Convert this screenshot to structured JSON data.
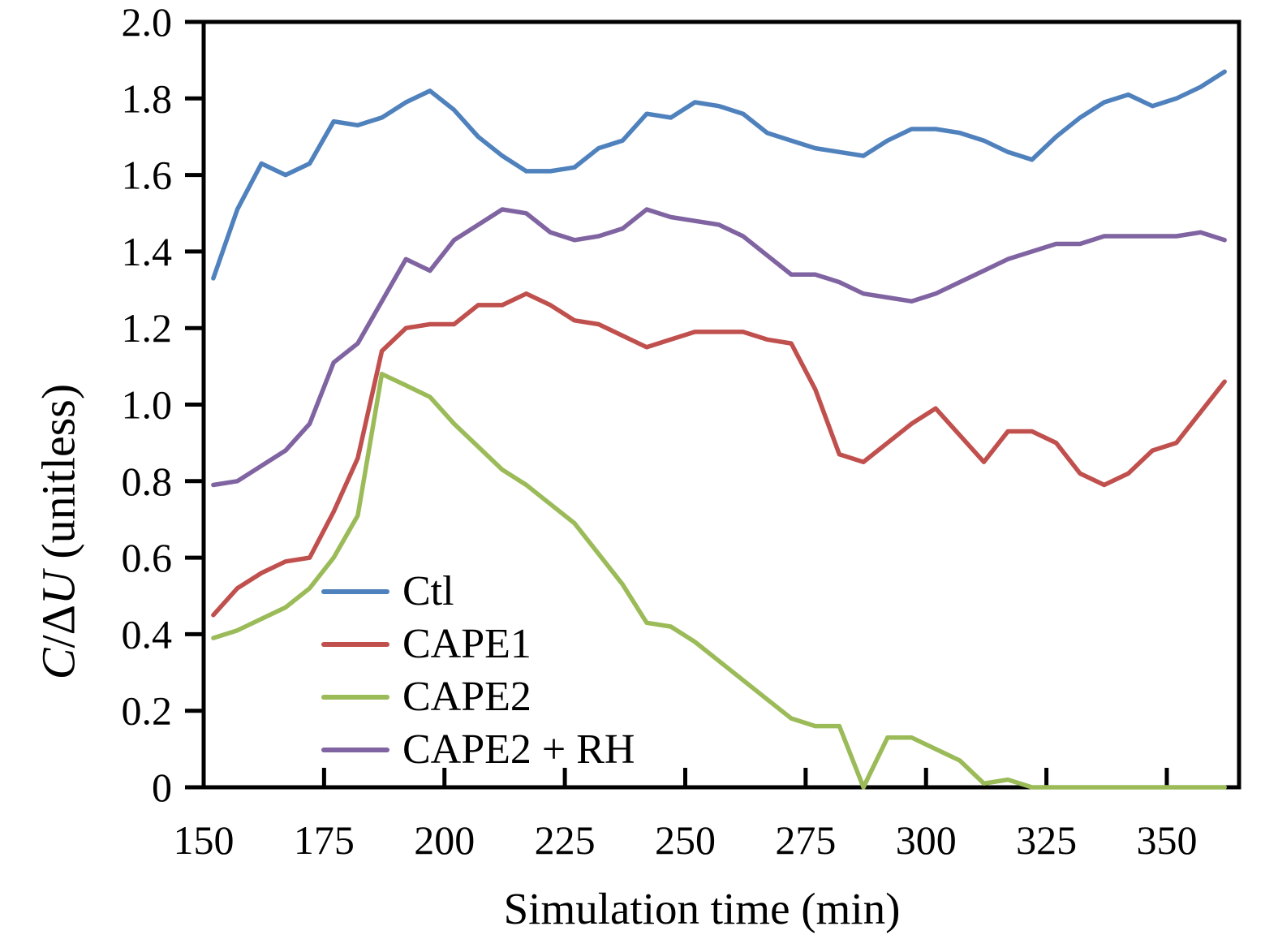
{
  "figure": {
    "background": "#ffffff",
    "axis_color": "#000000"
  },
  "chart_data": {
    "type": "line",
    "title": "",
    "xlabel": "Simulation time (min)",
    "ylabel": "C/ΔU (unitless)",
    "ylabel_rich": {
      "c": "C",
      "slash": "/",
      "delta": "Δ",
      "u": "U",
      "unit": " (unitless)"
    },
    "xlim": [
      150,
      365
    ],
    "ylim": [
      0,
      2.0
    ],
    "x_ticks": [
      150,
      175,
      200,
      225,
      250,
      275,
      300,
      325,
      350
    ],
    "y_ticks": [
      "0",
      "0.2",
      "0.4",
      "0.6",
      "0.8",
      "1.0",
      "1.2",
      "1.4",
      "1.6",
      "1.8",
      "2.0"
    ],
    "grid": false,
    "legend_position": "inside-lower-left",
    "x": [
      152,
      157,
      162,
      167,
      172,
      177,
      182,
      187,
      192,
      197,
      202,
      207,
      212,
      217,
      222,
      227,
      232,
      237,
      242,
      247,
      252,
      257,
      262,
      267,
      272,
      277,
      282,
      287,
      292,
      297,
      302,
      307,
      312,
      317,
      322,
      327,
      332,
      337,
      342,
      347,
      352,
      357,
      362
    ],
    "series": [
      {
        "name": "Ctl",
        "color": "#4F81BD",
        "values": [
          1.33,
          1.51,
          1.63,
          1.6,
          1.63,
          1.74,
          1.73,
          1.75,
          1.79,
          1.82,
          1.77,
          1.7,
          1.65,
          1.61,
          1.61,
          1.62,
          1.67,
          1.69,
          1.76,
          1.75,
          1.79,
          1.78,
          1.76,
          1.71,
          1.69,
          1.67,
          1.66,
          1.65,
          1.69,
          1.72,
          1.72,
          1.71,
          1.69,
          1.66,
          1.64,
          1.7,
          1.75,
          1.79,
          1.81,
          1.78,
          1.8,
          1.83,
          1.87
        ]
      },
      {
        "name": "CAPE1",
        "color": "#C0504D",
        "values": [
          0.45,
          0.52,
          0.56,
          0.59,
          0.6,
          0.72,
          0.86,
          1.14,
          1.2,
          1.21,
          1.21,
          1.26,
          1.26,
          1.29,
          1.26,
          1.22,
          1.21,
          1.18,
          1.15,
          1.17,
          1.19,
          1.19,
          1.19,
          1.17,
          1.16,
          1.04,
          0.87,
          0.85,
          0.9,
          0.95,
          0.99,
          0.92,
          0.85,
          0.93,
          0.93,
          0.9,
          0.82,
          0.79,
          0.82,
          0.88,
          0.9,
          0.98,
          1.06
        ]
      },
      {
        "name": "CAPE2",
        "color": "#9BBB59",
        "values": [
          0.39,
          0.41,
          0.44,
          0.47,
          0.52,
          0.6,
          0.71,
          1.08,
          1.05,
          1.02,
          0.95,
          0.89,
          0.83,
          0.79,
          0.74,
          0.69,
          0.61,
          0.53,
          0.43,
          0.42,
          0.38,
          0.33,
          0.28,
          0.23,
          0.18,
          0.16,
          0.16,
          0.0,
          0.13,
          0.13,
          0.1,
          0.07,
          0.01,
          0.02,
          0.0,
          0.0,
          0.0,
          0.0,
          0.0,
          0.0,
          0.0,
          0.0,
          0.0
        ]
      },
      {
        "name": "CAPE2 + RH",
        "color": "#8064A2",
        "values": [
          0.79,
          0.8,
          0.84,
          0.88,
          0.95,
          1.11,
          1.16,
          1.27,
          1.38,
          1.35,
          1.43,
          1.47,
          1.51,
          1.5,
          1.45,
          1.43,
          1.44,
          1.46,
          1.51,
          1.49,
          1.48,
          1.47,
          1.44,
          1.39,
          1.34,
          1.34,
          1.32,
          1.29,
          1.28,
          1.27,
          1.29,
          1.32,
          1.35,
          1.38,
          1.4,
          1.42,
          1.42,
          1.44,
          1.44,
          1.44,
          1.44,
          1.45,
          1.43
        ]
      }
    ]
  }
}
